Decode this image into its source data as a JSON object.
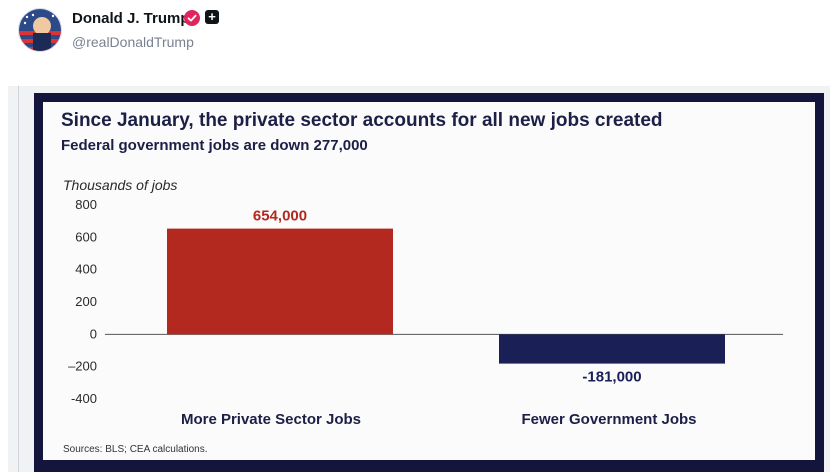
{
  "post": {
    "display_name": "Donald J. Trump",
    "handle": "@realDonaldTrump",
    "verified_icon": "verified-badge-icon",
    "plus_icon": "plus-square-icon",
    "accent_color": "#e0245e"
  },
  "chart_data": {
    "type": "bar",
    "title": "Since January, the private sector accounts for all new jobs created",
    "subtitle": "Federal government jobs are down 277,000",
    "ylabel": "Thousands of jobs",
    "xlabel": "",
    "categories": [
      "More Private Sector Jobs",
      "Fewer Government Jobs"
    ],
    "values": [
      654,
      -181
    ],
    "data_labels": [
      "654,000",
      "-181,000"
    ],
    "colors": [
      "#b3291f",
      "#1a2056"
    ],
    "ylim": [
      -400,
      800
    ],
    "yticks": [
      800,
      600,
      400,
      200,
      0,
      -200,
      -400
    ],
    "ytick_labels": [
      "800",
      "600",
      "400",
      "200",
      "0",
      "–200",
      "-400"
    ],
    "grid": false,
    "legend": "none",
    "source": "Sources: BLS; CEA calculations."
  }
}
